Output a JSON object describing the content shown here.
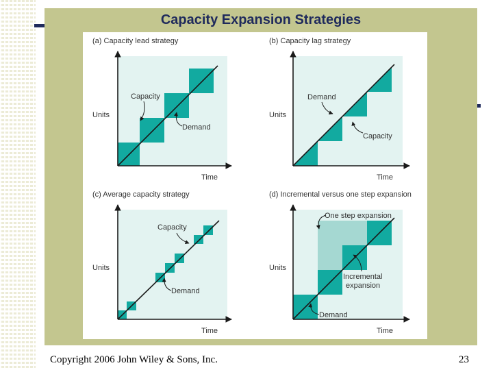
{
  "slide": {
    "title": "Capacity Expansion Strategies",
    "footer_copyright": "Copyright 2006 John Wiley & Sons, Inc.",
    "page_number": "23"
  },
  "colors": {
    "accent": "#1f2a5c",
    "panel": "#c3c68f",
    "plot_bg": "#e3f3f1",
    "capacity_fill": "#12aaa0",
    "one_step_fill": "#a5d8d2"
  },
  "panels": {
    "a": {
      "heading": "(a)  Capacity lead strategy",
      "y_label": "Units",
      "x_label": "Time",
      "capacity_label": "Capacity",
      "demand_label": "Demand"
    },
    "b": {
      "heading": "(b)  Capacity lag strategy",
      "y_label": "Units",
      "x_label": "Time",
      "capacity_label": "Capacity",
      "demand_label": "Demand"
    },
    "c": {
      "heading": "(c)  Average capacity strategy",
      "y_label": "Units",
      "x_label": "Time",
      "capacity_label": "Capacity",
      "demand_label": "Demand"
    },
    "d": {
      "heading": "(d)  Incremental versus one step expansion",
      "y_label": "Units",
      "x_label": "Time",
      "one_step_label": "One step expansion",
      "incremental_label_1": "Incremental",
      "incremental_label_2": "expansion",
      "demand_label": "Demand"
    }
  }
}
